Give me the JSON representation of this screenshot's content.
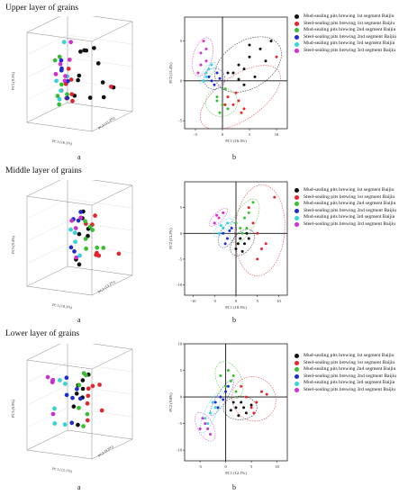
{
  "sections": [
    {
      "title": "Upper layer of grains",
      "label_a": "a",
      "label_b": "b"
    },
    {
      "title": "Middle layer of grains",
      "label_a": "a",
      "label_b": "b"
    },
    {
      "title": "Lower layer of grains",
      "label_a": "a",
      "label_b": "b"
    }
  ],
  "groups": [
    {
      "name": "Mud-sealing pits brewing 1st segment Baijiu",
      "color": "#111111"
    },
    {
      "name": "Steel-sealing pits brewing 1st segment Baijiu",
      "color": "#e8242a"
    },
    {
      "name": "Mud-sealing pits brewing 2nd segment Baijiu",
      "color": "#34c12e"
    },
    {
      "name": "Steel-sealing pits brewing 2nd segment Baijiu",
      "color": "#1c2bd6"
    },
    {
      "name": "Mud-sealing pits brewing 3rd segment Baijiu",
      "color": "#2fd6e0"
    },
    {
      "name": "Steel-sealing pits brewing 3rd segment Baijiu",
      "color": "#d42ad8"
    }
  ],
  "axis_labels": {
    "s1": {
      "pc1": "PC1 (16.3%)",
      "pc2": "PC2 (11.4%)",
      "pc3_3d": "PC3 (9.5%)",
      "pc1_3d": "PC1 (16.3%)",
      "pc2_3d": "PC2 (11.4%)"
    },
    "s2": {
      "pc1": "PC1 (18.3%)",
      "pc2": "PC2 (13.2%)",
      "pc3_3d": "PC3 (9.4%)",
      "pc1_3d": "PC1 (18.3%)",
      "pc2_3d": "PC2 (13.2%)"
    },
    "s3": {
      "pc1": "PC1 (12.1%)",
      "pc2": "PC2 (9.8%)",
      "pc3_3d": "PC3 (8.9%)",
      "pc1_3d": "PC1 (12.1%)",
      "pc2_3d": "PC2 (9.8%)"
    }
  },
  "chart_data": [
    {
      "type": "scatter",
      "panel": "upper-b",
      "xlim": [
        -7,
        12
      ],
      "ylim": [
        -6,
        8
      ],
      "xticks": [
        -5,
        0,
        5,
        10
      ],
      "yticks": [
        -5,
        0,
        5
      ],
      "series": [
        {
          "name": "Mud-sealing pits brewing 1st segment Baijiu",
          "points": [
            [
              3,
              2
            ],
            [
              5,
              3
            ],
            [
              7,
              4
            ],
            [
              2,
              1
            ],
            [
              4,
              1.5
            ],
            [
              6,
              0.5
            ],
            [
              8,
              2.5
            ],
            [
              3,
              0.2
            ],
            [
              5,
              4.5
            ],
            [
              9,
              5
            ],
            [
              1,
              1
            ],
            [
              4,
              -0.5
            ]
          ]
        },
        {
          "name": "Steel-sealing pits brewing 1st segment Baijiu",
          "points": [
            [
              1,
              -2
            ],
            [
              2,
              -3
            ],
            [
              3,
              -2.5
            ],
            [
              4,
              -3.5
            ],
            [
              2.5,
              -1.5
            ],
            [
              3.5,
              -4
            ],
            [
              0.5,
              -3
            ],
            [
              10,
              3
            ]
          ]
        },
        {
          "name": "Mud-sealing pits brewing 2nd segment Baijiu",
          "points": [
            [
              -1,
              -2
            ],
            [
              0,
              -3
            ],
            [
              0.5,
              -1
            ],
            [
              -0.5,
              -4
            ],
            [
              1,
              -3.5
            ],
            [
              -1,
              -2.5
            ]
          ]
        },
        {
          "name": "Steel-sealing pits brewing 2nd segment Baijiu",
          "points": [
            [
              -2,
              0
            ],
            [
              -1,
              1
            ],
            [
              -2.5,
              0.5
            ],
            [
              -1.5,
              -0.5
            ],
            [
              -0.5,
              0.3
            ]
          ]
        },
        {
          "name": "Mud-sealing pits brewing 3rd segment Baijiu",
          "points": [
            [
              -3,
              1
            ],
            [
              -2,
              2
            ],
            [
              -3,
              0.5
            ],
            [
              -2.5,
              1.5
            ],
            [
              -3.5,
              0
            ]
          ]
        },
        {
          "name": "Steel-sealing pits brewing 3rd segment Baijiu",
          "points": [
            [
              -3,
              4
            ],
            [
              -4,
              2
            ],
            [
              -3.5,
              5
            ],
            [
              -4,
              3.5
            ],
            [
              -3,
              2.5
            ],
            [
              -4.5,
              1
            ]
          ]
        }
      ]
    },
    {
      "type": "scatter",
      "panel": "middle-b",
      "xlim": [
        -12,
        12
      ],
      "ylim": [
        -12,
        10
      ],
      "xticks": [
        -10,
        -5,
        0,
        5,
        10
      ],
      "yticks": [
        -10,
        -5,
        0,
        5
      ],
      "series": [
        {
          "name": "Mud-sealing pits brewing 1st segment Baijiu",
          "points": [
            [
              1,
              -1
            ],
            [
              2,
              -2
            ],
            [
              0,
              -3
            ],
            [
              3,
              -1
            ],
            [
              1.5,
              -3.5
            ],
            [
              2.5,
              0
            ],
            [
              0.5,
              -2
            ]
          ]
        },
        {
          "name": "Steel-sealing pits brewing 1st segment Baijiu",
          "points": [
            [
              4,
              2
            ],
            [
              5,
              0
            ],
            [
              6,
              -3
            ],
            [
              3,
              5
            ],
            [
              7,
              -2
            ],
            [
              9,
              7
            ],
            [
              5,
              -5
            ]
          ]
        },
        {
          "name": "Mud-sealing pits brewing 2nd segment Baijiu",
          "points": [
            [
              1,
              1
            ],
            [
              2,
              3
            ],
            [
              0,
              2
            ],
            [
              3,
              4
            ],
            [
              1.5,
              0
            ],
            [
              4,
              6
            ],
            [
              2.5,
              1
            ]
          ]
        },
        {
          "name": "Steel-sealing pits brewing 2nd segment Baijiu",
          "points": [
            [
              -2,
              -1
            ],
            [
              -3,
              0
            ],
            [
              -1,
              1
            ],
            [
              -2.5,
              -2
            ],
            [
              -1.5,
              0.5
            ]
          ]
        },
        {
          "name": "Mud-sealing pits brewing 3rd segment Baijiu",
          "points": [
            [
              -3,
              1
            ],
            [
              -2,
              2
            ],
            [
              -4,
              0
            ],
            [
              -3.5,
              1.5
            ]
          ]
        },
        {
          "name": "Steel-sealing pits brewing 3rd segment Baijiu",
          "points": [
            [
              -4,
              3
            ],
            [
              -5,
              2
            ],
            [
              -3,
              4
            ],
            [
              -4.5,
              3.5
            ]
          ]
        }
      ]
    },
    {
      "type": "scatter",
      "panel": "lower-b",
      "xlim": [
        -8,
        12
      ],
      "ylim": [
        -12,
        10
      ],
      "xticks": [
        -5,
        0,
        5,
        10
      ],
      "yticks": [
        -10,
        -5,
        0,
        5,
        10
      ],
      "series": [
        {
          "name": "Mud-sealing pits brewing 1st segment Baijiu",
          "points": [
            [
              2,
              -2
            ],
            [
              3,
              -1
            ],
            [
              4,
              -3
            ],
            [
              1,
              -2.5
            ],
            [
              3.5,
              -2
            ],
            [
              2.5,
              -3.5
            ],
            [
              5,
              -1.5
            ],
            [
              1.5,
              -1
            ]
          ]
        },
        {
          "name": "Steel-sealing pits brewing 1st segment Baijiu",
          "points": [
            [
              4,
              0
            ],
            [
              5,
              -2
            ],
            [
              6,
              -1
            ],
            [
              7,
              1
            ],
            [
              5.5,
              -3
            ],
            [
              8,
              0.5
            ],
            [
              3,
              2
            ]
          ]
        },
        {
          "name": "Mud-sealing pits brewing 2nd segment Baijiu",
          "points": [
            [
              0,
              2
            ],
            [
              1,
              3
            ],
            [
              -1,
              4
            ],
            [
              2,
              1
            ],
            [
              0.5,
              5
            ],
            [
              1.5,
              4
            ]
          ]
        },
        {
          "name": "Steel-sealing pits brewing 2nd segment Baijiu",
          "points": [
            [
              -1,
              0
            ],
            [
              -2,
              -1
            ],
            [
              0,
              1
            ],
            [
              -1.5,
              -2
            ],
            [
              -0.5,
              -0.5
            ],
            [
              0.5,
              2
            ]
          ]
        },
        {
          "name": "Mud-sealing pits brewing 3rd segment Baijiu",
          "points": [
            [
              -3,
              -3
            ],
            [
              -4,
              -4
            ],
            [
              -2,
              -2
            ],
            [
              -3.5,
              -5
            ],
            [
              -2.5,
              -1
            ]
          ]
        },
        {
          "name": "Steel-sealing pits brewing 3rd segment Baijiu",
          "points": [
            [
              -4,
              -5
            ],
            [
              -5,
              -6
            ],
            [
              -3,
              -7
            ],
            [
              -4.5,
              -4
            ],
            [
              -3.5,
              -6
            ]
          ]
        }
      ]
    }
  ]
}
